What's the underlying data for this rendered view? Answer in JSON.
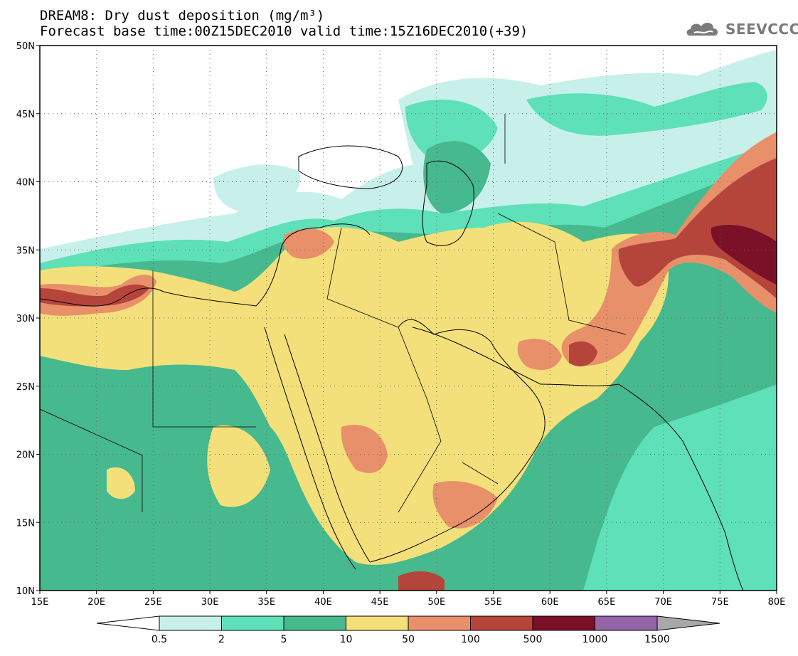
{
  "title": {
    "line1": "DREAM8: Dry dust deposition (mg/m³)",
    "line2": "Forecast base time:00Z15DEC2010 valid time:15Z16DEC2010(+39)"
  },
  "logo": {
    "text": "SEEVCCC",
    "icon": "cloud-icon"
  },
  "map": {
    "lat_labels": [
      "50N",
      "45N",
      "40N",
      "35N",
      "30N",
      "25N",
      "20N",
      "15N",
      "10N"
    ],
    "lon_labels": [
      "15E",
      "20E",
      "25E",
      "30E",
      "35E",
      "40E",
      "45E",
      "50E",
      "55E",
      "60E",
      "65E",
      "70E",
      "75E",
      "80E"
    ],
    "grid": "dotted"
  },
  "legend": {
    "levels": [
      "0.5",
      "2",
      "5",
      "10",
      "50",
      "100",
      "500",
      "1000",
      "1500"
    ],
    "colors": {
      "below_min": "#ffffff",
      "bins": [
        "#c8f0ea",
        "#5ee0b8",
        "#46b98e",
        "#f4e07a",
        "#e8906a",
        "#b5453b",
        "#7a1128",
        "#9466a8"
      ],
      "above_max": "#a8a8a8"
    }
  }
}
